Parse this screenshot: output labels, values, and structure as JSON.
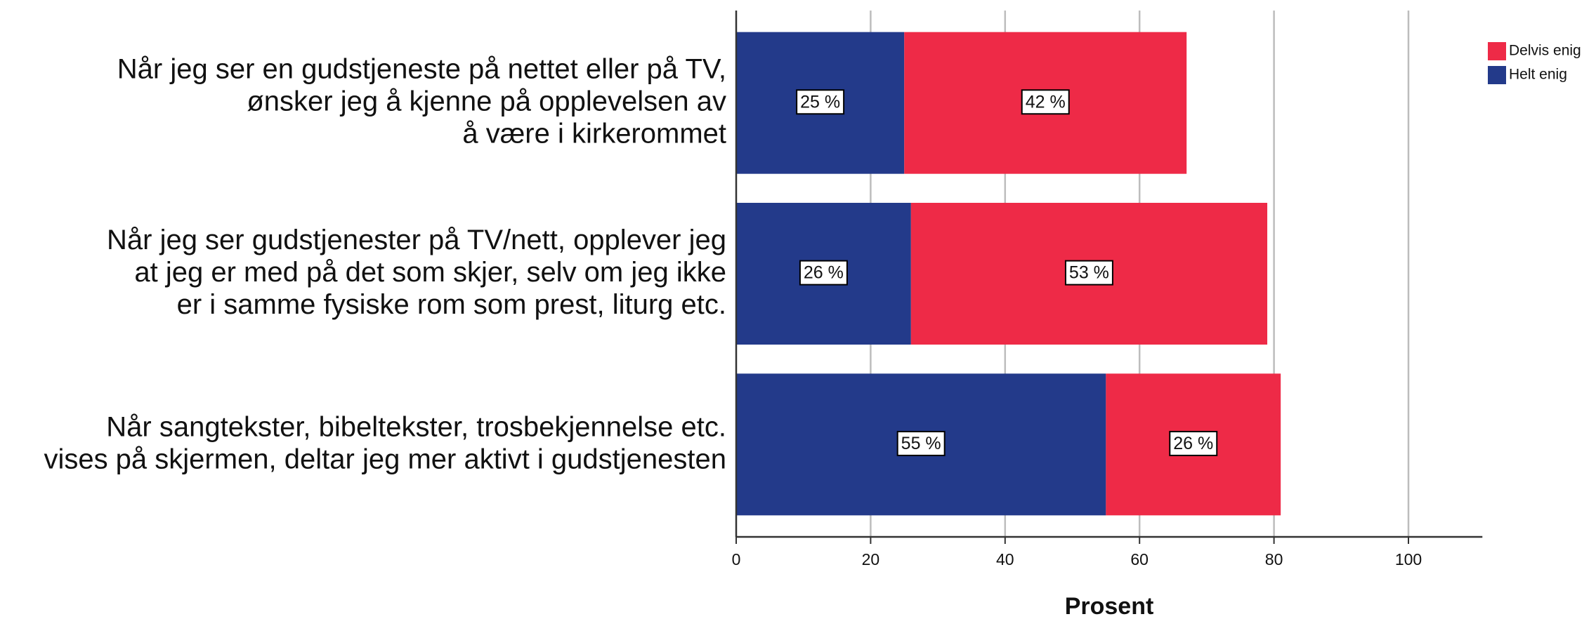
{
  "chart_data": {
    "type": "stacked-bar-horizontal",
    "categories": [
      "Når jeg ser en gudstjeneste på nettet eller på TV,\nønsker jeg å kjenne på opplevelsen av\nå være i kirkerommet",
      "Når jeg ser gudstjenester på TV/nett, opplever jeg\nat jeg er med på det som skjer, selv om jeg ikke\ner i samme fysiske rom som prest, liturg etc.",
      "Når sangtekster, bibeltekster, trosbekjennelse etc.\nvises på skjermen, deltar jeg mer aktivt i gudstjenesten"
    ],
    "series": [
      {
        "name": "Helt enig",
        "color": "#233a8a",
        "values": [
          25,
          26,
          55
        ],
        "value_labels": [
          "25 %",
          "26 %",
          "55 %"
        ]
      },
      {
        "name": "Delvis enig",
        "color": "#ee2a47",
        "values": [
          42,
          53,
          26
        ],
        "value_labels": [
          "42 %",
          "53 %",
          "26 %"
        ]
      }
    ],
    "xlabel": "Prosent",
    "xlim": [
      0,
      111
    ],
    "xticks": [
      0,
      20,
      40,
      60,
      80,
      100
    ],
    "grid": true,
    "legend": "top-right"
  }
}
